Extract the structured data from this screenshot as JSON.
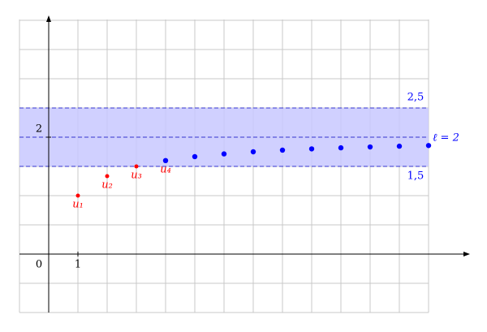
{
  "chart_data": {
    "type": "scatter",
    "xlim": [
      -1,
      13
    ],
    "ylim": [
      -1,
      4
    ],
    "origin_label": "0",
    "xticks": [
      1
    ],
    "yticks": [
      2
    ],
    "grid": true,
    "band": {
      "range": [
        {
          "value": 1.5,
          "label": "1,5"
        },
        {
          "value": 2.5,
          "label": "2,5"
        }
      ],
      "color": "#c8c8ff",
      "line_color": "#3333cc"
    },
    "limit": {
      "value": 2,
      "label": "ℓ = 2",
      "color": "#0000ff"
    },
    "series": [
      {
        "color": "#ff0000",
        "x": [
          1,
          2,
          3
        ],
        "values": [
          1,
          1.333,
          1.5
        ]
      },
      {
        "color": "#0000ff",
        "x": [
          4,
          5,
          6,
          7,
          8,
          9,
          10,
          11,
          12,
          13
        ],
        "values": [
          1.6,
          1.667,
          1.714,
          1.75,
          1.778,
          1.8,
          1.818,
          1.833,
          1.846,
          1.857
        ]
      }
    ],
    "point_labels": [
      {
        "x": 1,
        "y": 1,
        "label": "u₁"
      },
      {
        "x": 2,
        "y": 1.333,
        "label": "u₂"
      },
      {
        "x": 3,
        "y": 1.5,
        "label": "u₃"
      },
      {
        "x": 4,
        "y": 1.6,
        "label": "u₄"
      }
    ],
    "point_label_color": "#ff0000"
  }
}
